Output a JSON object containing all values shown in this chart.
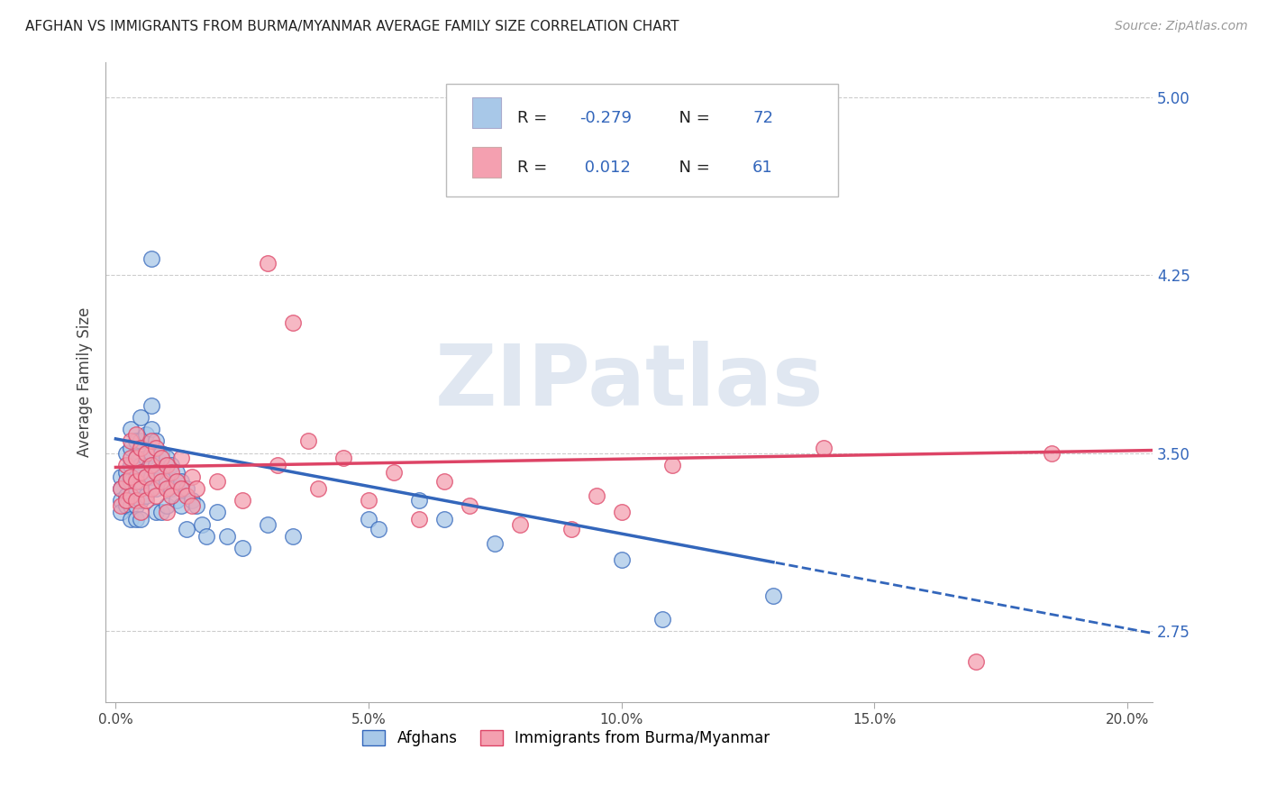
{
  "title": "AFGHAN VS IMMIGRANTS FROM BURMA/MYANMAR AVERAGE FAMILY SIZE CORRELATION CHART",
  "source": "Source: ZipAtlas.com",
  "ylabel": "Average Family Size",
  "xlabel_ticks": [
    "0.0%",
    "5.0%",
    "10.0%",
    "15.0%",
    "20.0%"
  ],
  "xlabel_vals": [
    0.0,
    0.05,
    0.1,
    0.15,
    0.2
  ],
  "ylabel_ticks": [
    2.75,
    3.5,
    4.25,
    5.0
  ],
  "xlim": [
    -0.002,
    0.205
  ],
  "ylim": [
    2.45,
    5.15
  ],
  "legend_label1": "Afghans",
  "legend_label2": "Immigrants from Burma/Myanmar",
  "R1": -0.279,
  "N1": 72,
  "R2": 0.012,
  "N2": 61,
  "color1": "#a8c8e8",
  "color2": "#f4a0b0",
  "trendline1_color": "#3366bb",
  "trendline2_color": "#dd4466",
  "background_color": "#ffffff",
  "watermark": "ZIPatlas",
  "watermark_color": "#ccd8e8",
  "grid_color": "#cccccc",
  "title_fontsize": 11,
  "trendline1_intercept": 3.56,
  "trendline1_slope": -4.0,
  "trendline2_intercept": 3.44,
  "trendline2_slope": 0.35,
  "trendline1_solid_end": 0.13,
  "scatter_blue": [
    [
      0.001,
      3.4
    ],
    [
      0.001,
      3.35
    ],
    [
      0.001,
      3.3
    ],
    [
      0.001,
      3.25
    ],
    [
      0.002,
      3.5
    ],
    [
      0.002,
      3.42
    ],
    [
      0.002,
      3.38
    ],
    [
      0.002,
      3.32
    ],
    [
      0.002,
      3.28
    ],
    [
      0.003,
      3.6
    ],
    [
      0.003,
      3.52
    ],
    [
      0.003,
      3.45
    ],
    [
      0.003,
      3.38
    ],
    [
      0.003,
      3.32
    ],
    [
      0.003,
      3.28
    ],
    [
      0.003,
      3.22
    ],
    [
      0.004,
      3.55
    ],
    [
      0.004,
      3.48
    ],
    [
      0.004,
      3.4
    ],
    [
      0.004,
      3.35
    ],
    [
      0.004,
      3.28
    ],
    [
      0.004,
      3.22
    ],
    [
      0.005,
      3.65
    ],
    [
      0.005,
      3.55
    ],
    [
      0.005,
      3.45
    ],
    [
      0.005,
      3.38
    ],
    [
      0.005,
      3.3
    ],
    [
      0.005,
      3.22
    ],
    [
      0.006,
      3.58
    ],
    [
      0.006,
      3.48
    ],
    [
      0.006,
      3.4
    ],
    [
      0.006,
      3.32
    ],
    [
      0.007,
      4.32
    ],
    [
      0.007,
      3.7
    ],
    [
      0.007,
      3.6
    ],
    [
      0.007,
      3.5
    ],
    [
      0.007,
      3.4
    ],
    [
      0.008,
      3.55
    ],
    [
      0.008,
      3.45
    ],
    [
      0.008,
      3.35
    ],
    [
      0.008,
      3.25
    ],
    [
      0.009,
      3.5
    ],
    [
      0.009,
      3.4
    ],
    [
      0.009,
      3.25
    ],
    [
      0.01,
      3.48
    ],
    [
      0.01,
      3.38
    ],
    [
      0.01,
      3.28
    ],
    [
      0.011,
      3.45
    ],
    [
      0.011,
      3.35
    ],
    [
      0.012,
      3.42
    ],
    [
      0.012,
      3.3
    ],
    [
      0.013,
      3.38
    ],
    [
      0.013,
      3.28
    ],
    [
      0.014,
      3.35
    ],
    [
      0.014,
      3.18
    ],
    [
      0.015,
      3.3
    ],
    [
      0.016,
      3.28
    ],
    [
      0.017,
      3.2
    ],
    [
      0.018,
      3.15
    ],
    [
      0.02,
      3.25
    ],
    [
      0.022,
      3.15
    ],
    [
      0.025,
      3.1
    ],
    [
      0.03,
      3.2
    ],
    [
      0.035,
      3.15
    ],
    [
      0.05,
      3.22
    ],
    [
      0.052,
      3.18
    ],
    [
      0.06,
      3.3
    ],
    [
      0.065,
      3.22
    ],
    [
      0.075,
      3.12
    ],
    [
      0.1,
      3.05
    ],
    [
      0.108,
      2.8
    ],
    [
      0.13,
      2.9
    ]
  ],
  "scatter_pink": [
    [
      0.001,
      3.35
    ],
    [
      0.001,
      3.28
    ],
    [
      0.002,
      3.45
    ],
    [
      0.002,
      3.38
    ],
    [
      0.002,
      3.3
    ],
    [
      0.003,
      3.55
    ],
    [
      0.003,
      3.48
    ],
    [
      0.003,
      3.4
    ],
    [
      0.003,
      3.32
    ],
    [
      0.004,
      3.58
    ],
    [
      0.004,
      3.48
    ],
    [
      0.004,
      3.38
    ],
    [
      0.004,
      3.3
    ],
    [
      0.005,
      3.52
    ],
    [
      0.005,
      3.42
    ],
    [
      0.005,
      3.35
    ],
    [
      0.005,
      3.25
    ],
    [
      0.006,
      3.5
    ],
    [
      0.006,
      3.4
    ],
    [
      0.006,
      3.3
    ],
    [
      0.007,
      3.55
    ],
    [
      0.007,
      3.45
    ],
    [
      0.007,
      3.35
    ],
    [
      0.008,
      3.52
    ],
    [
      0.008,
      3.42
    ],
    [
      0.008,
      3.32
    ],
    [
      0.009,
      3.48
    ],
    [
      0.009,
      3.38
    ],
    [
      0.01,
      3.45
    ],
    [
      0.01,
      3.35
    ],
    [
      0.01,
      3.25
    ],
    [
      0.011,
      3.42
    ],
    [
      0.011,
      3.32
    ],
    [
      0.012,
      3.38
    ],
    [
      0.013,
      3.48
    ],
    [
      0.013,
      3.35
    ],
    [
      0.014,
      3.32
    ],
    [
      0.015,
      3.4
    ],
    [
      0.015,
      3.28
    ],
    [
      0.016,
      3.35
    ],
    [
      0.02,
      3.38
    ],
    [
      0.025,
      3.3
    ],
    [
      0.03,
      4.3
    ],
    [
      0.032,
      3.45
    ],
    [
      0.035,
      4.05
    ],
    [
      0.038,
      3.55
    ],
    [
      0.04,
      3.35
    ],
    [
      0.045,
      3.48
    ],
    [
      0.05,
      3.3
    ],
    [
      0.055,
      3.42
    ],
    [
      0.06,
      3.22
    ],
    [
      0.065,
      3.38
    ],
    [
      0.07,
      3.28
    ],
    [
      0.08,
      3.2
    ],
    [
      0.09,
      3.18
    ],
    [
      0.095,
      3.32
    ],
    [
      0.1,
      3.25
    ],
    [
      0.11,
      3.45
    ],
    [
      0.14,
      3.52
    ],
    [
      0.17,
      2.62
    ],
    [
      0.185,
      3.5
    ]
  ]
}
